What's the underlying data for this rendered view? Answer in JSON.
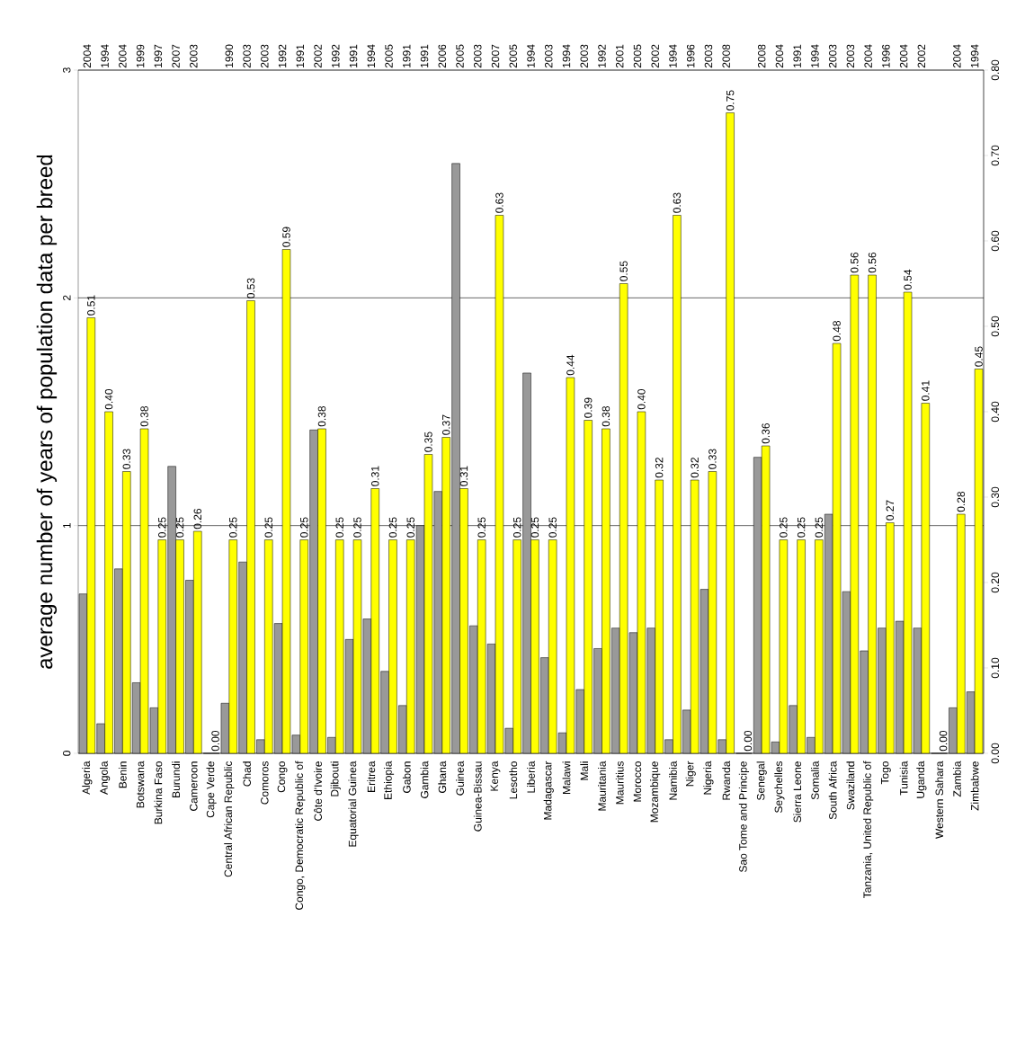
{
  "chart_data": {
    "type": "bar",
    "ylabel": "average number of years of population data per breed",
    "categories": [
      "Algeria",
      "Angola",
      "Benin",
      "Botswana",
      "Burkina Faso",
      "Burundi",
      "Cameroon",
      "Cape Verde",
      "Central African Republic",
      "Chad",
      "Comoros",
      "Congo",
      "Congo, Democratic Republic of",
      "Côte d'Ivoire",
      "Djibouti",
      "Equatorial Guinea",
      "Eritrea",
      "Ethiopia",
      "Gabon",
      "Gambia",
      "Ghana",
      "Guinea",
      "Guinea-Bissau",
      "Kenya",
      "Lesotho",
      "Liberia",
      "Madagascar",
      "Malawi",
      "Mali",
      "Mauritania",
      "Mauritius",
      "Morocco",
      "Mozambique",
      "Namibia",
      "Niger",
      "Nigeria",
      "Rwanda",
      "Sao Tome and Principe",
      "Senegal",
      "Seychelles",
      "Sierra Leone",
      "Somalia",
      "South Africa",
      "Swaziland",
      "Tanzania, United Republic of",
      "Togo",
      "Tunisia",
      "Uganda",
      "Western Sahara",
      "Zambia",
      "Zimbabwe"
    ],
    "series": [
      {
        "color": "#999999",
        "values": [
          0.7,
          0.13,
          0.81,
          0.31,
          0.2,
          1.26,
          0.76,
          0,
          0.22,
          0.84,
          0.06,
          0.57,
          0.08,
          1.42,
          0.07,
          0.5,
          0.59,
          0.36,
          0.21,
          1.0,
          1.15,
          2.59,
          0.56,
          0.48,
          0.11,
          1.67,
          0.42,
          0.09,
          0.28,
          0.46,
          0.55,
          0.53,
          0.55,
          0.06,
          0.19,
          0.72,
          0.06,
          0,
          1.3,
          0.05,
          0.21,
          0.07,
          1.05,
          0.71,
          0.45,
          0.55,
          0.58,
          0.55,
          0,
          0.2,
          0.27
        ]
      },
      {
        "color": "#ffff00",
        "axis": "y2",
        "values": [
          0.51,
          0.4,
          0.33,
          0.38,
          0.25,
          0.25,
          0.26,
          0,
          0.25,
          0.53,
          0.25,
          0.59,
          0.25,
          0.38,
          0.25,
          0.25,
          0.31,
          0.25,
          0.25,
          0.35,
          0.37,
          0.31,
          0.25,
          0.63,
          0.25,
          0.25,
          0.25,
          0.44,
          0.39,
          0.38,
          0.55,
          0.4,
          0.32,
          0.63,
          0.32,
          0.33,
          0.75,
          0,
          0.36,
          0.25,
          0.25,
          0.25,
          0.48,
          0.56,
          0.56,
          0.27,
          0.54,
          0.41,
          0,
          0.28,
          0.45
        ],
        "value_labels": [
          "0.51",
          "0.40",
          "0.33",
          "0.38",
          "0.25",
          "0.25",
          "0.26",
          "0.00",
          "0.25",
          "0.53",
          "0.25",
          "0.59",
          "0.25",
          "0.38",
          "0.25",
          "0.25",
          "0.31",
          "0.25",
          "0.25",
          "0.35",
          "0.37",
          "0.31",
          "0.25",
          "0.63",
          "0.25",
          "0.25",
          "0.25",
          "0.44",
          "0.39",
          "0.38",
          "0.55",
          "0.40",
          "0.32",
          "0.63",
          "0.32",
          "0.33",
          "0.75",
          "0.00",
          "0.36",
          "0.25",
          "0.25",
          "0.25",
          "0.48",
          "0.56",
          "0.56",
          "0.27",
          "0.54",
          "0.41",
          "0.00",
          "0.28",
          "0.45"
        ]
      }
    ],
    "ylim": [
      0,
      3
    ],
    "yticks": [
      0,
      1,
      2,
      3
    ],
    "y2lim": [
      0,
      0.8
    ],
    "y2ticks": [
      {
        "value": 0,
        "label": "0.00"
      },
      {
        "value": 0.1,
        "label": "0.10"
      },
      {
        "value": 0.2,
        "label": "0.20"
      },
      {
        "value": 0.3,
        "label": "0.30"
      },
      {
        "value": 0.4,
        "label": "0.40"
      },
      {
        "value": 0.5,
        "label": "0.50"
      },
      {
        "value": 0.6,
        "label": "0.60"
      },
      {
        "value": 0.7,
        "label": "0.70"
      },
      {
        "value": 0.8,
        "label": "0.80"
      }
    ],
    "grid": "y",
    "annotations": [
      "2004",
      "1994",
      "2004",
      "1999",
      "1997",
      "2007",
      "2003",
      null,
      "1990",
      "2003",
      "2003",
      "1992",
      "1991",
      "2002",
      "1992",
      "1991",
      "1994",
      "2005",
      "1991",
      "1991",
      "2006",
      "2005",
      "2003",
      "2007",
      "2005",
      "1994",
      "2003",
      "1994",
      "2003",
      "1992",
      "2001",
      "2005",
      "2002",
      "1994",
      "1996",
      "2003",
      "2008",
      null,
      "2008",
      "2004",
      "1991",
      "1994",
      "2003",
      "2003",
      "2004",
      "1996",
      "2004",
      "2002",
      null,
      "2004",
      "1994"
    ]
  }
}
